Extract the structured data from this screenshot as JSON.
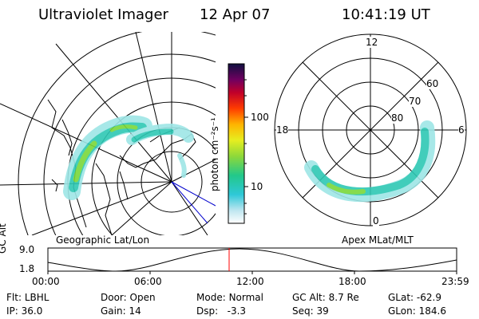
{
  "header": {
    "instrument": "Ultraviolet Imager",
    "date": "12 Apr 07",
    "time": "10:41:19 UT"
  },
  "colorbar": {
    "unit_label": "photon cm⁻²s⁻¹",
    "ticks": [
      "100",
      "10"
    ]
  },
  "left_panel": {
    "label": "Geographic Lat/Lon"
  },
  "right_panel": {
    "label": "Apex MLat/MLT",
    "mlt_labels": [
      "12",
      "18",
      "6",
      "0"
    ],
    "lat_labels": [
      "60",
      "70",
      "80"
    ]
  },
  "altitude_plot": {
    "ylabel": "GC Alt",
    "yticks": [
      "9.0",
      "1.8"
    ],
    "xticks": [
      "00:00",
      "06:00",
      "12:00",
      "18:00",
      "23:59"
    ],
    "marker_color": "#ff0000"
  },
  "status": {
    "flt_label": "Flt:",
    "flt_value": "LBHL",
    "ip_label": "IP:",
    "ip_value": "36.0",
    "door_label": "Door:",
    "door_value": "Open",
    "gain_label": "Gain:",
    "gain_value": "14",
    "mode_label": "Mode:",
    "mode_value": "Normal",
    "dsp_label": "Dsp:",
    "dsp_value": "-3.3",
    "gcalt_label": "GC Alt:",
    "gcalt_value": "8.7 Re",
    "seq_label": "Seq:",
    "seq_value": "39",
    "glat_label": "GLat:",
    "glat_value": "-62.9",
    "glon_label": "GLon:",
    "glon_value": "184.6"
  }
}
